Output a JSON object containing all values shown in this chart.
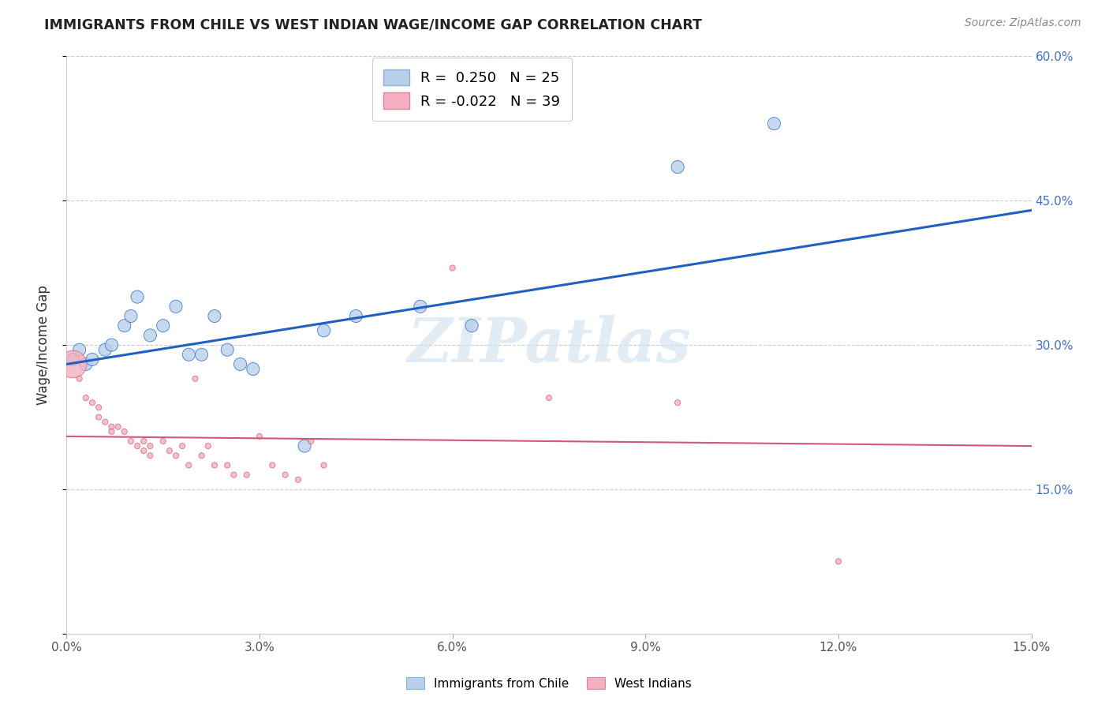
{
  "title": "IMMIGRANTS FROM CHILE VS WEST INDIAN WAGE/INCOME GAP CORRELATION CHART",
  "source": "Source: ZipAtlas.com",
  "ylabel": "Wage/Income Gap",
  "xlim": [
    0.0,
    0.15
  ],
  "ylim": [
    0.0,
    0.6
  ],
  "xticks": [
    0.0,
    0.03,
    0.06,
    0.09,
    0.12,
    0.15
  ],
  "yticks": [
    0.0,
    0.15,
    0.3,
    0.45,
    0.6
  ],
  "xtick_labels": [
    "0.0%",
    "3.0%",
    "6.0%",
    "9.0%",
    "12.0%",
    "15.0%"
  ],
  "ytick_labels": [
    "",
    "15.0%",
    "30.0%",
    "45.0%",
    "60.0%"
  ],
  "blue_color": "#b8d0ea",
  "pink_color": "#f5afc0",
  "trend_blue": "#2060c0",
  "trend_pink": "#d05878",
  "watermark": "ZIPatlas",
  "blue_x": [
    0.001,
    0.002,
    0.003,
    0.004,
    0.006,
    0.007,
    0.009,
    0.01,
    0.011,
    0.013,
    0.015,
    0.017,
    0.019,
    0.021,
    0.023,
    0.025,
    0.027,
    0.029,
    0.037,
    0.04,
    0.045,
    0.055,
    0.063,
    0.095,
    0.11
  ],
  "blue_y": [
    0.285,
    0.295,
    0.28,
    0.285,
    0.295,
    0.3,
    0.32,
    0.33,
    0.35,
    0.31,
    0.32,
    0.34,
    0.29,
    0.29,
    0.33,
    0.295,
    0.28,
    0.275,
    0.195,
    0.315,
    0.33,
    0.34,
    0.32,
    0.485,
    0.53
  ],
  "blue_sizes": [
    30,
    30,
    30,
    30,
    30,
    30,
    30,
    30,
    30,
    30,
    30,
    30,
    30,
    30,
    30,
    30,
    30,
    30,
    30,
    30,
    30,
    30,
    30,
    30,
    30
  ],
  "blue_large_idx": [],
  "pink_x": [
    0.001,
    0.002,
    0.003,
    0.004,
    0.005,
    0.005,
    0.006,
    0.007,
    0.007,
    0.008,
    0.009,
    0.01,
    0.011,
    0.012,
    0.012,
    0.013,
    0.013,
    0.015,
    0.016,
    0.017,
    0.018,
    0.019,
    0.02,
    0.021,
    0.022,
    0.023,
    0.025,
    0.026,
    0.028,
    0.03,
    0.032,
    0.034,
    0.036,
    0.038,
    0.04,
    0.06,
    0.075,
    0.095,
    0.12
  ],
  "pink_y": [
    0.28,
    0.265,
    0.245,
    0.24,
    0.225,
    0.235,
    0.22,
    0.215,
    0.21,
    0.215,
    0.21,
    0.2,
    0.195,
    0.19,
    0.2,
    0.195,
    0.185,
    0.2,
    0.19,
    0.185,
    0.195,
    0.175,
    0.265,
    0.185,
    0.195,
    0.175,
    0.175,
    0.165,
    0.165,
    0.205,
    0.175,
    0.165,
    0.16,
    0.2,
    0.175,
    0.38,
    0.245,
    0.24,
    0.075
  ],
  "pink_sizes": [
    700,
    30,
    30,
    30,
    30,
    30,
    30,
    30,
    30,
    30,
    30,
    30,
    30,
    30,
    30,
    30,
    30,
    30,
    30,
    30,
    30,
    30,
    30,
    30,
    30,
    30,
    30,
    30,
    30,
    30,
    30,
    30,
    30,
    30,
    30,
    30,
    30,
    30,
    30
  ],
  "pink_trend_y0": 0.205,
  "pink_trend_y1": 0.195,
  "blue_trend_y0": 0.28,
  "blue_trend_y1": 0.44
}
